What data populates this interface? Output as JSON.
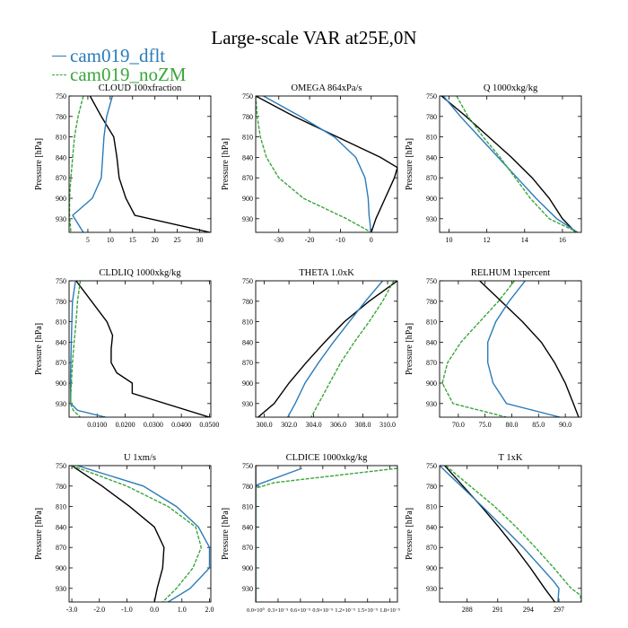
{
  "figure": {
    "title": "Large-scale VAR at25E,0N",
    "legend": [
      {
        "label": "cam019_dflt",
        "color": "#2b7bb9",
        "dash": false
      },
      {
        "label": "cam019_noZM",
        "color": "#3aa63a",
        "dash": true
      }
    ],
    "black_series_color": "#000000"
  },
  "chart_data": [
    {
      "type": "line",
      "title": "CLOUD  100xfraction",
      "ylabel": "Pressure [hPa]",
      "y_reversed": true,
      "ylim": [
        750,
        950
      ],
      "yticks": [
        750,
        780,
        810,
        840,
        870,
        900,
        930
      ],
      "ytick_labels": [
        "750",
        "780",
        "810",
        "840",
        "870",
        "900",
        "930"
      ],
      "xlim": [
        0.8,
        32.5
      ],
      "xticks": [
        5,
        10,
        15,
        20,
        25,
        30
      ],
      "xtick_labels": [
        "5",
        "10",
        "15",
        "20",
        "25",
        "30"
      ],
      "series": [
        {
          "color": "#000000",
          "y": [
            750,
            780,
            810,
            840,
            870,
            900,
            925,
            950
          ],
          "x": [
            5.5,
            8.0,
            10.8,
            11.5,
            12.0,
            13.5,
            15.5,
            32.3
          ]
        },
        {
          "color": "#2b7bb9",
          "y": [
            750,
            780,
            810,
            840,
            870,
            900,
            925,
            950
          ],
          "x": [
            10.5,
            9.2,
            8.6,
            8.3,
            8.0,
            6.0,
            1.6,
            4.0
          ]
        },
        {
          "color": "#3aa63a",
          "y": [
            750,
            780,
            810,
            840,
            870,
            900,
            925,
            950
          ],
          "x": [
            4.0,
            2.8,
            2.0,
            1.6,
            1.2,
            0.9,
            0.9,
            1.2
          ]
        }
      ]
    },
    {
      "type": "line",
      "title": "OMEGA  864xPa/s",
      "ylabel": "Pressure [hPa]",
      "y_reversed": true,
      "ylim": [
        750,
        950
      ],
      "yticks": [
        750,
        780,
        810,
        840,
        870,
        900,
        930
      ],
      "ytick_labels": [
        "750",
        "780",
        "810",
        "840",
        "870",
        "900",
        "930"
      ],
      "xlim": [
        -37.5,
        8.5
      ],
      "xticks": [
        -30,
        -20,
        -10,
        0
      ],
      "xtick_labels": [
        "-30",
        "-20",
        "-10",
        "0"
      ],
      "series": [
        {
          "color": "#000000",
          "y": [
            750,
            780,
            810,
            840,
            855,
            870,
            900,
            930,
            950
          ],
          "x": [
            -37.5,
            -25.0,
            -11.0,
            3.0,
            8.5,
            7.5,
            4.5,
            1.5,
            0.0
          ]
        },
        {
          "color": "#2b7bb9",
          "y": [
            750,
            780,
            810,
            840,
            870,
            900,
            925,
            940,
            950
          ],
          "x": [
            -35.0,
            -23.0,
            -12.0,
            -5.0,
            -2.0,
            -1.0,
            -0.7,
            -0.3,
            -0.2
          ]
        },
        {
          "color": "#3aa63a",
          "y": [
            750,
            780,
            810,
            840,
            870,
            900,
            930,
            950
          ],
          "x": [
            -37.5,
            -37.0,
            -36.0,
            -34.0,
            -30.0,
            -22.0,
            -8.0,
            0.0
          ]
        }
      ]
    },
    {
      "type": "line",
      "title": "Q  1000xkg/kg",
      "ylabel": "Pressure [hPa]",
      "y_reversed": true,
      "ylim": [
        750,
        950
      ],
      "yticks": [
        750,
        780,
        810,
        840,
        870,
        900,
        930
      ],
      "ytick_labels": [
        "750",
        "780",
        "810",
        "840",
        "870",
        "900",
        "930"
      ],
      "xlim": [
        9.5,
        17.0
      ],
      "xticks": [
        10,
        12,
        14,
        16
      ],
      "xtick_labels": [
        "10",
        "12",
        "14",
        "16"
      ],
      "series": [
        {
          "color": "#000000",
          "y": [
            750,
            780,
            810,
            840,
            870,
            900,
            930,
            950
          ],
          "x": [
            9.6,
            10.9,
            12.1,
            13.3,
            14.4,
            15.3,
            16.0,
            16.7
          ]
        },
        {
          "color": "#2b7bb9",
          "y": [
            750,
            780,
            810,
            840,
            870,
            900,
            930,
            950
          ],
          "x": [
            9.7,
            10.6,
            11.6,
            12.6,
            13.6,
            14.6,
            15.7,
            16.8
          ]
        },
        {
          "color": "#3aa63a",
          "y": [
            750,
            780,
            810,
            840,
            870,
            900,
            930,
            950
          ],
          "x": [
            10.4,
            11.0,
            11.8,
            12.7,
            13.5,
            14.3,
            15.3,
            16.8
          ]
        }
      ]
    },
    {
      "type": "line",
      "title": "CLDLIQ  1000xkg/kg",
      "ylabel": "Pressure [hPa]",
      "y_reversed": true,
      "ylim": [
        750,
        950
      ],
      "yticks": [
        750,
        780,
        810,
        840,
        870,
        900,
        930
      ],
      "ytick_labels": [
        "750",
        "780",
        "810",
        "840",
        "870",
        "900",
        "930"
      ],
      "xlim": [
        0.0,
        0.0505
      ],
      "xticks": [
        0.01,
        0.02,
        0.03,
        0.04,
        0.05
      ],
      "xtick_labels": [
        "0.0100",
        "0.0200",
        "0.0300",
        "0.0400",
        "0.0500"
      ],
      "series": [
        {
          "color": "#000000",
          "y": [
            750,
            780,
            810,
            830,
            850,
            870,
            885,
            900,
            915,
            950
          ],
          "x": [
            0.0025,
            0.008,
            0.0135,
            0.0155,
            0.015,
            0.015,
            0.017,
            0.0225,
            0.0225,
            0.05
          ]
        },
        {
          "color": "#2b7bb9",
          "y": [
            750,
            780,
            810,
            840,
            870,
            900,
            930,
            940,
            950
          ],
          "x": [
            0.0023,
            0.0012,
            0.001,
            0.0008,
            0.0006,
            0.0005,
            0.0006,
            0.003,
            0.013
          ]
        },
        {
          "color": "#3aa63a",
          "y": [
            750,
            780,
            810,
            840,
            870,
            900,
            930,
            940,
            950
          ],
          "x": [
            0.004,
            0.003,
            0.0025,
            0.0018,
            0.0012,
            0.0008,
            0.0005,
            0.0015,
            0.004
          ]
        }
      ]
    },
    {
      "type": "line",
      "title": "THETA  1.0xK",
      "ylabel": "",
      "y_reversed": true,
      "ylim": [
        750,
        950
      ],
      "yticks": [
        750,
        780,
        810,
        840,
        870,
        900,
        930
      ],
      "ytick_labels": [
        "750",
        "780",
        "810",
        "840",
        "870",
        "900",
        "930"
      ],
      "xlim": [
        299.3,
        310.8
      ],
      "xticks": [
        300,
        302,
        304,
        306,
        308,
        310
      ],
      "xtick_labels": [
        "300.0",
        "302.0",
        "304.0",
        "306.0",
        "308.0",
        "310.0"
      ],
      "series": [
        {
          "color": "#000000",
          "y": [
            750,
            780,
            810,
            840,
            870,
            900,
            930,
            950
          ],
          "x": [
            310.8,
            308.5,
            306.5,
            304.9,
            303.4,
            302.0,
            300.8,
            299.5
          ]
        },
        {
          "color": "#2b7bb9",
          "y": [
            750,
            780,
            810,
            840,
            870,
            900,
            930,
            950
          ],
          "x": [
            309.6,
            308.2,
            306.9,
            305.6,
            304.4,
            303.3,
            302.5,
            301.9
          ]
        },
        {
          "color": "#3aa63a",
          "y": [
            750,
            780,
            810,
            840,
            870,
            900,
            930,
            950
          ],
          "x": [
            310.5,
            309.6,
            308.5,
            307.3,
            306.2,
            305.3,
            304.4,
            303.8
          ]
        }
      ]
    },
    {
      "type": "line",
      "title": "RELHUM  1xpercent",
      "ylabel": "Pressure [hPa]",
      "y_reversed": true,
      "ylim": [
        750,
        950
      ],
      "yticks": [
        750,
        780,
        810,
        840,
        870,
        900,
        930
      ],
      "ytick_labels": [
        "750",
        "780",
        "810",
        "840",
        "870",
        "900",
        "930"
      ],
      "xlim": [
        66.5,
        93.0
      ],
      "xticks": [
        70,
        75,
        80,
        85,
        90
      ],
      "xtick_labels": [
        "70.0",
        "75.0",
        "80.0",
        "85.0",
        "90.0"
      ],
      "series": [
        {
          "color": "#000000",
          "y": [
            750,
            780,
            810,
            840,
            870,
            900,
            930,
            950
          ],
          "x": [
            74.0,
            78.0,
            82.0,
            85.5,
            88.0,
            90.0,
            91.5,
            92.5
          ]
        },
        {
          "color": "#2b7bb9",
          "y": [
            750,
            780,
            810,
            840,
            870,
            900,
            930,
            950
          ],
          "x": [
            82.5,
            79.5,
            77.0,
            75.5,
            75.5,
            76.5,
            79.0,
            89.0
          ]
        },
        {
          "color": "#3aa63a",
          "y": [
            750,
            780,
            810,
            840,
            870,
            900,
            930,
            950
          ],
          "x": [
            80.5,
            77.5,
            74.0,
            70.5,
            68.0,
            67.0,
            69.0,
            79.0
          ]
        }
      ]
    },
    {
      "type": "line",
      "title": "U  1xm/s",
      "ylabel": "Pressure [hPa]",
      "y_reversed": true,
      "ylim": [
        750,
        950
      ],
      "yticks": [
        750,
        780,
        810,
        840,
        870,
        900,
        930
      ],
      "ytick_labels": [
        "750",
        "780",
        "810",
        "840",
        "870",
        "900",
        "930"
      ],
      "xlim": [
        -3.1,
        2.05
      ],
      "xticks": [
        -3,
        -2,
        -1,
        0,
        1,
        2
      ],
      "xtick_labels": [
        "-3.0",
        "-2.0",
        "-1.0",
        "0.0",
        "1.0",
        "2.0"
      ],
      "series": [
        {
          "color": "#000000",
          "y": [
            750,
            780,
            810,
            840,
            870,
            900,
            930,
            950
          ],
          "x": [
            -3.0,
            -1.9,
            -0.9,
            0.0,
            0.35,
            0.3,
            0.1,
            0.0
          ]
        },
        {
          "color": "#2b7bb9",
          "y": [
            750,
            780,
            810,
            840,
            870,
            900,
            930,
            950
          ],
          "x": [
            -2.8,
            -0.4,
            0.8,
            1.6,
            2.0,
            2.0,
            1.3,
            0.5
          ]
        },
        {
          "color": "#3aa63a",
          "y": [
            750,
            780,
            810,
            840,
            870,
            900,
            930,
            950
          ],
          "x": [
            -3.0,
            -1.0,
            0.5,
            1.5,
            1.7,
            1.4,
            0.8,
            0.3
          ]
        }
      ]
    },
    {
      "type": "line",
      "title": "CLDICE  1000xkg/kg",
      "ylabel": "Pressure [hPa]",
      "y_reversed": true,
      "ylim": [
        750,
        950
      ],
      "yticks": [
        750,
        780,
        810,
        840,
        870,
        900,
        930
      ],
      "ytick_labels": [
        "750",
        "780",
        "810",
        "840",
        "870",
        "900",
        "930"
      ],
      "xlim": [
        0.0,
        1.9
      ],
      "xticks": [
        0.0,
        0.3,
        0.6,
        0.9,
        1.2,
        1.5,
        1.8
      ],
      "xtick_labels": [
        "0.0×10⁰",
        "0.3×10⁻⁵",
        "0.6×10⁻⁵",
        "0.9×10⁻⁵",
        "1.2×10⁻⁵",
        "1.5×10⁻⁵",
        "1.8×10⁻⁵"
      ],
      "series": [
        {
          "color": "#000000",
          "y": [
            750,
            780,
            810,
            840,
            870,
            900,
            930,
            950
          ],
          "x": [
            0,
            0,
            0,
            0,
            0,
            0,
            0,
            0
          ]
        },
        {
          "color": "#2b7bb9",
          "y": [
            754,
            778,
            783,
            800,
            950
          ],
          "x": [
            0.62,
            0.02,
            0.0,
            0.0,
            0.0
          ]
        },
        {
          "color": "#3aa63a",
          "y": [
            754,
            775,
            783,
            800,
            950
          ],
          "x": [
            1.9,
            0.25,
            0.0,
            0.0,
            0.0
          ]
        }
      ]
    },
    {
      "type": "line",
      "title": "T  1xK",
      "ylabel": "Pressure [hPa]",
      "y_reversed": true,
      "ylim": [
        750,
        950
      ],
      "yticks": [
        750,
        780,
        810,
        840,
        870,
        900,
        930
      ],
      "ytick_labels": [
        "750",
        "780",
        "810",
        "840",
        "870",
        "900",
        "930"
      ],
      "xlim": [
        285.3,
        299.2
      ],
      "xticks": [
        288,
        291,
        294,
        297
      ],
      "xtick_labels": [
        "288",
        "291",
        "294",
        "297"
      ],
      "series": [
        {
          "color": "#000000",
          "y": [
            750,
            780,
            810,
            840,
            870,
            900,
            930,
            950
          ],
          "x": [
            285.8,
            287.6,
            289.4,
            291.1,
            292.7,
            294.2,
            295.6,
            296.6
          ]
        },
        {
          "color": "#2b7bb9",
          "y": [
            750,
            780,
            810,
            840,
            870,
            900,
            920,
            930,
            950
          ],
          "x": [
            285.3,
            287.4,
            289.5,
            291.5,
            293.5,
            295.3,
            296.5,
            297.0,
            296.9
          ]
        },
        {
          "color": "#3aa63a",
          "y": [
            750,
            780,
            810,
            840,
            870,
            900,
            930,
            940,
            950
          ],
          "x": [
            285.9,
            288.3,
            290.7,
            292.8,
            294.7,
            296.5,
            298.2,
            299.1,
            299.2
          ]
        }
      ]
    }
  ]
}
